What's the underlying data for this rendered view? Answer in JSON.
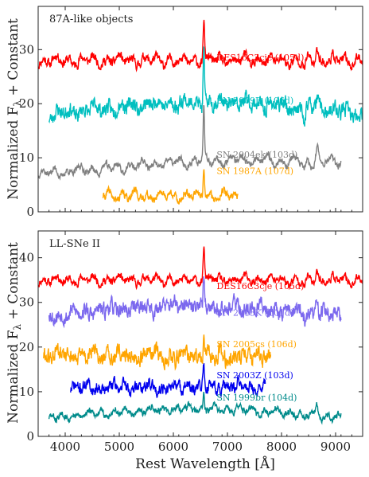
{
  "figure": {
    "xlabel": "Rest Wavelength [Å]",
    "ylabel": "Normalized F",
    "ylabel_sub": "λ",
    "ylabel_tail": " + Constant"
  },
  "chart_data": [
    {
      "type": "line",
      "title": "87A-like objects",
      "xlim": [
        3500,
        9500
      ],
      "ylim": [
        0,
        38
      ],
      "xticks": [
        4000,
        5000,
        6000,
        7000,
        8000,
        9000
      ],
      "yticks": [
        0,
        10,
        20,
        30
      ],
      "series": [
        {
          "name": "DES16C3cje (105d)",
          "color": "#ff0000",
          "xmin": 3500,
          "xmax": 9500,
          "base": 28,
          "amp": 1.4,
          "halpha": 8,
          "shape": "flat",
          "seed": 11
        },
        {
          "name": "SN 2009E (106d)",
          "color": "#00bfbf",
          "xmin": 3700,
          "xmax": 9500,
          "base": 18,
          "amp": 2.2,
          "halpha": 10,
          "shape": "hump",
          "seed": 23
        },
        {
          "name": "SN 2004ek (103d)",
          "color": "#808080",
          "xmin": 3500,
          "xmax": 9100,
          "base": 7,
          "amp": 1.0,
          "halpha": 10,
          "shape": "rise",
          "seed": 37
        },
        {
          "name": "SN 1987A (107d)",
          "color": "#ffa500",
          "xmin": 4700,
          "xmax": 7200,
          "base": 3,
          "amp": 1.2,
          "halpha": 5,
          "shape": "flat",
          "seed": 41
        }
      ]
    },
    {
      "type": "line",
      "title": "LL-SNe II",
      "xlim": [
        3500,
        9500
      ],
      "ylim": [
        0,
        46
      ],
      "xticks": [
        4000,
        5000,
        6000,
        7000,
        8000,
        9000
      ],
      "yticks": [
        0,
        10,
        20,
        30,
        40
      ],
      "series": [
        {
          "name": "DES16C3cje (105d)",
          "color": "#ff0000",
          "xmin": 3500,
          "xmax": 9500,
          "base": 35,
          "amp": 1.4,
          "halpha": 8,
          "shape": "flat",
          "seed": 11
        },
        {
          "name": "SN 2013K (101d)",
          "color": "#7b68ee",
          "xmin": 3700,
          "xmax": 9100,
          "base": 27,
          "amp": 2.8,
          "halpha": 6,
          "shape": "hump",
          "seed": 53
        },
        {
          "name": "SN 2005cs (106d)",
          "color": "#ffa500",
          "xmin": 3600,
          "xmax": 7800,
          "base": 18,
          "amp": 3.0,
          "halpha": 4,
          "shape": "flat",
          "seed": 61
        },
        {
          "name": "SN 2003Z (103d)",
          "color": "#0000ee",
          "xmin": 4100,
          "xmax": 7700,
          "base": 11,
          "amp": 2.2,
          "halpha": 5,
          "shape": "flat",
          "seed": 71
        },
        {
          "name": "SN 1999br (104d)",
          "color": "#008b8b",
          "xmin": 3700,
          "xmax": 9100,
          "base": 4,
          "amp": 1.2,
          "halpha": 4,
          "shape": "hump",
          "seed": 83
        }
      ]
    }
  ]
}
